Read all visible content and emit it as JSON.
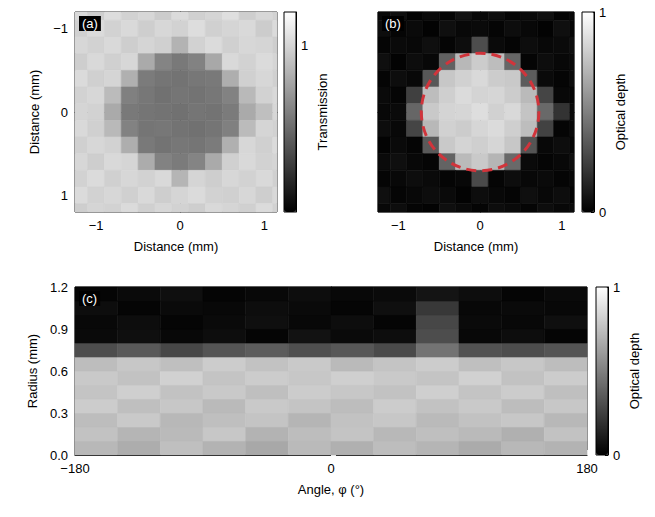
{
  "chart_data": [
    {
      "type": "heatmap",
      "title": "(a)",
      "xlabel": "Distance (mm)",
      "ylabel": "Distance (mm)",
      "xlim": [
        -1.25,
        1.15
      ],
      "ylim": [
        1.2,
        -1.2
      ],
      "xticks": [
        {
          "value": -1,
          "label": "−1"
        },
        0,
        1
      ],
      "yticks": [
        {
          "value": -1,
          "label": "−1"
        },
        0,
        1
      ],
      "cells": {
        "width": 0.2,
        "height": 0.2,
        "x": [
          -1.2,
          -1.0,
          -0.8,
          -0.6,
          -0.4,
          -0.2,
          0,
          0.2,
          0.4,
          0.6,
          0.8,
          1.0,
          1.2
        ],
        "y": [
          -1.2,
          -1.0,
          -0.8,
          -0.6,
          -0.4,
          -0.2,
          0,
          0.2,
          0.4,
          0.6,
          0.8,
          1.0,
          1.2
        ],
        "values": [
          [
            1.02,
            0.97,
            1.04,
            0.99,
            1.01,
            0.96,
            1.03,
            0.98,
            1.0,
            1.05,
            0.97,
            1.01,
            0.99
          ],
          [
            0.98,
            1.03,
            0.99,
            1.02,
            0.97,
            1.01,
            0.99,
            1.04,
            0.98,
            1.0,
            1.02,
            0.96,
            1.03
          ],
          [
            1.01,
            0.99,
            1.02,
            0.97,
            1.0,
            0.98,
            0.84,
            0.99,
            1.03,
            0.98,
            1.01,
            1.0,
            0.97
          ],
          [
            0.97,
            1.02,
            0.98,
            1.01,
            0.8,
            0.62,
            0.57,
            0.61,
            0.79,
            1.02,
            0.99,
            1.03,
            1.0
          ],
          [
            1.03,
            0.98,
            1.0,
            0.83,
            0.58,
            0.55,
            0.54,
            0.56,
            0.57,
            0.82,
            0.98,
            1.01,
            0.98
          ],
          [
            0.99,
            1.01,
            0.88,
            0.6,
            0.56,
            0.53,
            0.55,
            0.54,
            0.56,
            0.61,
            0.87,
            0.99,
            1.02
          ],
          [
            1.0,
            0.99,
            0.8,
            0.57,
            0.55,
            0.54,
            0.53,
            0.55,
            0.54,
            0.58,
            0.8,
            0.9,
            1.01
          ],
          [
            1.02,
            0.98,
            0.87,
            0.61,
            0.55,
            0.56,
            0.54,
            0.53,
            0.55,
            0.6,
            0.88,
            1.0,
            0.99
          ],
          [
            0.98,
            1.01,
            0.99,
            0.82,
            0.57,
            0.54,
            0.56,
            0.55,
            0.58,
            0.83,
            1.01,
            0.98,
            1.03
          ],
          [
            1.01,
            0.97,
            1.02,
            1.0,
            0.81,
            0.61,
            0.58,
            0.62,
            0.8,
            0.98,
            1.02,
            0.99,
            1.0
          ],
          [
            0.99,
            1.03,
            0.98,
            1.01,
            0.99,
            1.02,
            0.85,
            1.0,
            0.97,
            1.01,
            0.99,
            1.02,
            0.98
          ],
          [
            1.03,
            0.99,
            1.01,
            0.98,
            1.02,
            0.97,
            1.0,
            1.03,
            0.99,
            0.98,
            1.01,
            0.97,
            1.02
          ],
          [
            0.97,
            1.0,
            0.99,
            1.03,
            0.98,
            1.01,
            0.99,
            0.97,
            1.02,
            1.0,
            0.98,
            1.03,
            0.99
          ]
        ]
      },
      "colorbar": {
        "label": "Transmission",
        "range": [
          0,
          1.2
        ],
        "ticks": [
          1
        ],
        "colors": [
          "#000000",
          "#ffffff"
        ]
      }
    },
    {
      "type": "heatmap",
      "title": "(b)",
      "xlabel": "Distance (mm)",
      "xlim": [
        -1.25,
        1.15
      ],
      "ylim": [
        1.2,
        -1.2
      ],
      "xticks": [
        {
          "value": -1,
          "label": "−1"
        },
        0,
        1
      ],
      "yticks": [
        -1,
        0,
        1
      ],
      "tick_labels": "x",
      "cells": {
        "width": 0.2,
        "height": 0.2,
        "x": [
          -1.2,
          -1.0,
          -0.8,
          -0.6,
          -0.4,
          -0.2,
          0,
          0.2,
          0.4,
          0.6,
          0.8,
          1.0,
          1.2
        ],
        "y": [
          -1.2,
          -1.0,
          -0.8,
          -0.6,
          -0.4,
          -0.2,
          0,
          0.2,
          0.4,
          0.6,
          0.8,
          1.0,
          1.2
        ],
        "values": [
          [
            0.03,
            0.06,
            0.01,
            0.04,
            0.02,
            0.07,
            0.03,
            0.05,
            0.02,
            0.04,
            0.06,
            0.01,
            0.03
          ],
          [
            0.05,
            0.02,
            0.04,
            0.01,
            0.06,
            0.03,
            0.04,
            0.02,
            0.05,
            0.03,
            0.01,
            0.06,
            0.02
          ],
          [
            0.02,
            0.04,
            0.03,
            0.06,
            0.02,
            0.05,
            0.3,
            0.04,
            0.02,
            0.05,
            0.03,
            0.04,
            0.06
          ],
          [
            0.06,
            0.01,
            0.05,
            0.03,
            0.38,
            0.72,
            0.8,
            0.74,
            0.4,
            0.02,
            0.05,
            0.03,
            0.04
          ],
          [
            0.02,
            0.05,
            0.03,
            0.34,
            0.78,
            0.82,
            0.85,
            0.8,
            0.79,
            0.36,
            0.04,
            0.02,
            0.05
          ],
          [
            0.04,
            0.02,
            0.25,
            0.74,
            0.81,
            0.86,
            0.83,
            0.84,
            0.8,
            0.73,
            0.27,
            0.03,
            0.02
          ],
          [
            0.03,
            0.04,
            0.4,
            0.79,
            0.83,
            0.84,
            0.87,
            0.82,
            0.85,
            0.77,
            0.41,
            0.2,
            0.04
          ],
          [
            0.05,
            0.03,
            0.27,
            0.72,
            0.82,
            0.8,
            0.84,
            0.86,
            0.81,
            0.74,
            0.26,
            0.02,
            0.04
          ],
          [
            0.01,
            0.04,
            0.02,
            0.35,
            0.79,
            0.83,
            0.81,
            0.84,
            0.78,
            0.33,
            0.03,
            0.05,
            0.02
          ],
          [
            0.04,
            0.06,
            0.03,
            0.02,
            0.39,
            0.73,
            0.79,
            0.71,
            0.41,
            0.04,
            0.02,
            0.03,
            0.06
          ],
          [
            0.02,
            0.03,
            0.05,
            0.04,
            0.02,
            0.03,
            0.29,
            0.02,
            0.05,
            0.03,
            0.04,
            0.02,
            0.03
          ],
          [
            0.06,
            0.02,
            0.03,
            0.05,
            0.04,
            0.01,
            0.05,
            0.03,
            0.02,
            0.06,
            0.03,
            0.05,
            0.01
          ],
          [
            0.03,
            0.05,
            0.02,
            0.01,
            0.06,
            0.04,
            0.02,
            0.05,
            0.04,
            0.02,
            0.05,
            0.03,
            0.04
          ]
        ]
      },
      "circle": {
        "center": [
          0,
          0
        ],
        "radius": 0.72,
        "color": "#d1343b",
        "line_style": "dashed"
      },
      "colorbar": {
        "label": "Optical depth",
        "range": [
          0,
          1
        ],
        "ticks": [
          0,
          1
        ],
        "colors": [
          "#000000",
          "#ffffff"
        ]
      }
    },
    {
      "type": "heatmap",
      "title": "(c)",
      "xlabel": "Angle, φ (°)",
      "ylabel": "Radius (mm)",
      "xlim": [
        -180,
        180
      ],
      "ylim": [
        0,
        1.2
      ],
      "xticks": [
        {
          "value": -180,
          "label": "−180"
        },
        0,
        180
      ],
      "yticks": [
        {
          "value": 0,
          "label": "0.0"
        },
        0.3,
        0.6,
        0.9,
        1.2
      ],
      "cells": {
        "width": 30,
        "height": 0.1,
        "x": [
          -165,
          -135,
          -105,
          -75,
          -45,
          -15,
          15,
          45,
          75,
          105,
          135,
          165
        ],
        "y": [
          0.05,
          0.15,
          0.25,
          0.35,
          0.45,
          0.55,
          0.65,
          0.75,
          0.85,
          0.95,
          1.05,
          1.15
        ],
        "values": [
          [
            0.72,
            0.68,
            0.75,
            0.7,
            0.66,
            0.73,
            0.69,
            0.74,
            0.71,
            0.67,
            0.72,
            0.7
          ],
          [
            0.76,
            0.71,
            0.73,
            0.78,
            0.7,
            0.74,
            0.77,
            0.72,
            0.75,
            0.73,
            0.69,
            0.76
          ],
          [
            0.74,
            0.79,
            0.72,
            0.75,
            0.77,
            0.71,
            0.76,
            0.78,
            0.73,
            0.76,
            0.78,
            0.72
          ],
          [
            0.8,
            0.75,
            0.78,
            0.73,
            0.79,
            0.77,
            0.74,
            0.8,
            0.76,
            0.79,
            0.74,
            0.78
          ],
          [
            0.77,
            0.81,
            0.76,
            0.79,
            0.75,
            0.8,
            0.78,
            0.76,
            0.81,
            0.77,
            0.8,
            0.75
          ],
          [
            0.79,
            0.76,
            0.82,
            0.77,
            0.8,
            0.78,
            0.81,
            0.79,
            0.77,
            0.82,
            0.76,
            0.8
          ],
          [
            0.74,
            0.78,
            0.75,
            0.8,
            0.76,
            0.79,
            0.73,
            0.77,
            0.8,
            0.75,
            0.78,
            0.74
          ],
          [
            0.3,
            0.35,
            0.28,
            0.33,
            0.36,
            0.31,
            0.34,
            0.29,
            0.45,
            0.32,
            0.3,
            0.33
          ],
          [
            0.04,
            0.06,
            0.03,
            0.05,
            0.02,
            0.07,
            0.04,
            0.05,
            0.3,
            0.03,
            0.05,
            0.02
          ],
          [
            0.03,
            0.05,
            0.02,
            0.04,
            0.06,
            0.03,
            0.05,
            0.02,
            0.28,
            0.04,
            0.03,
            0.06
          ],
          [
            0.05,
            0.02,
            0.04,
            0.03,
            0.05,
            0.04,
            0.02,
            0.06,
            0.22,
            0.03,
            0.04,
            0.03
          ],
          [
            0.02,
            0.04,
            0.06,
            0.02,
            0.03,
            0.05,
            0.03,
            0.04,
            0.08,
            0.05,
            0.02,
            0.04
          ]
        ]
      },
      "colorbar": {
        "label": "Optical depth",
        "range": [
          0,
          1
        ],
        "ticks": [
          0,
          1
        ],
        "colors": [
          "#000000",
          "#ffffff"
        ]
      }
    }
  ]
}
